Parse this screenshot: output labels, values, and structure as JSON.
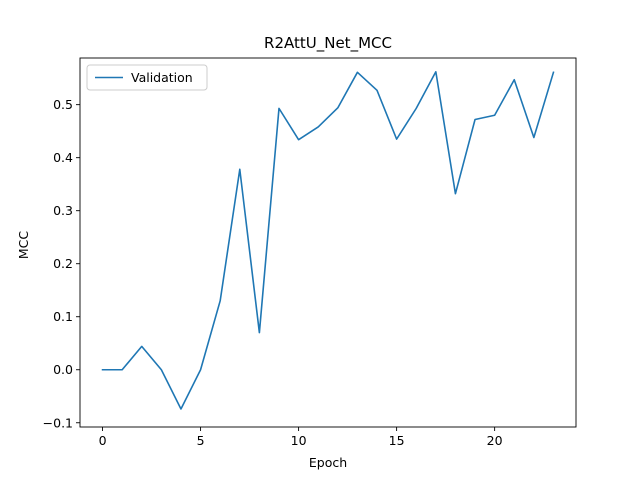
{
  "chart_data": {
    "type": "line",
    "title": "R2AttU_Net_MCC",
    "xlabel": "Epoch",
    "ylabel": "MCC",
    "xlim": [
      -1.15,
      24.15
    ],
    "ylim": [
      -0.108,
      0.588
    ],
    "xticks": [
      0,
      5,
      10,
      15,
      20
    ],
    "yticks": [
      -0.1,
      0.0,
      0.1,
      0.2,
      0.3,
      0.4,
      0.5
    ],
    "grid": false,
    "legend_position": "upper-left",
    "series": [
      {
        "name": "Validation",
        "color": "#1f77b4",
        "x": [
          0,
          1,
          2,
          3,
          4,
          5,
          6,
          7,
          8,
          9,
          10,
          11,
          12,
          13,
          14,
          15,
          16,
          17,
          18,
          19,
          20,
          21,
          22,
          23
        ],
        "y": [
          0.0,
          0.0,
          0.044,
          0.0,
          -0.074,
          0.0,
          0.13,
          0.378,
          0.07,
          0.493,
          0.434,
          0.458,
          0.494,
          0.561,
          0.527,
          0.435,
          0.493,
          0.562,
          0.332,
          0.472,
          0.48,
          0.547,
          0.438,
          0.561
        ]
      }
    ]
  }
}
